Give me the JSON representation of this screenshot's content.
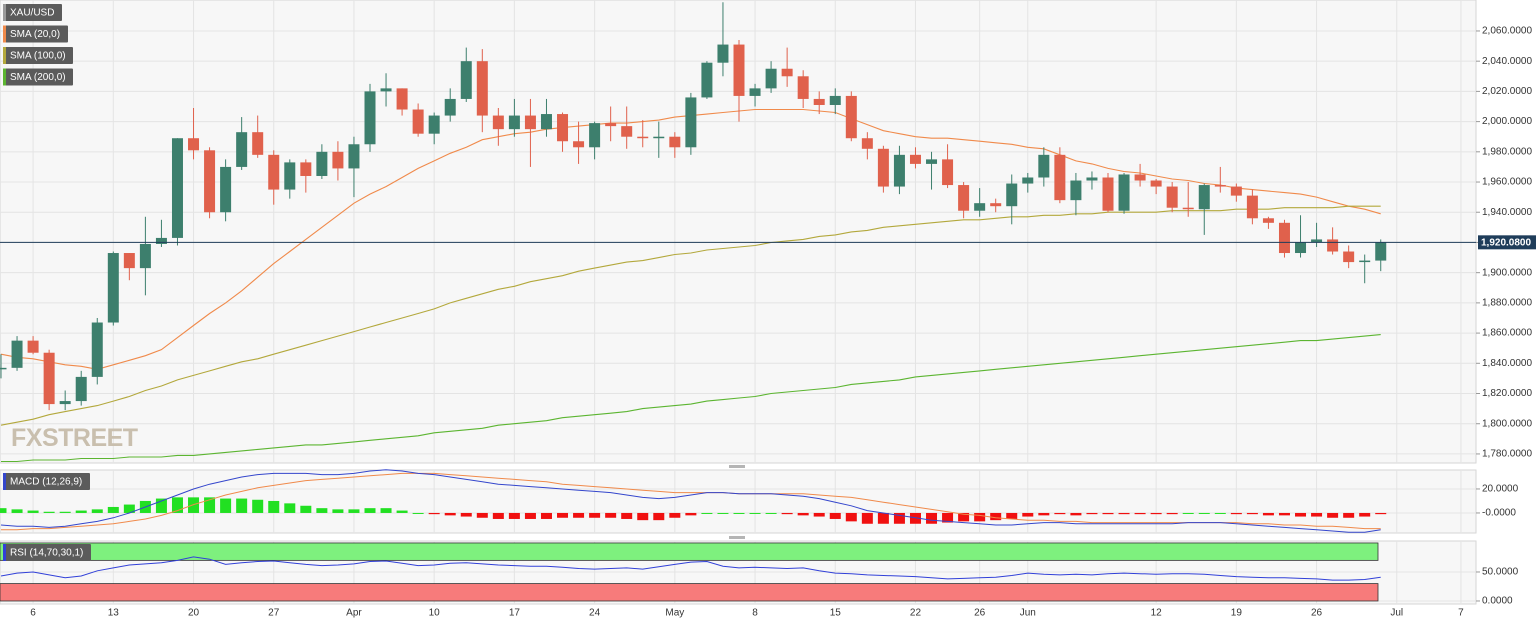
{
  "chart_data": {
    "type": "candlestick",
    "watermark": "FXSTREET",
    "categories": [
      null,
      null,
      "6",
      null,
      null,
      null,
      null,
      "13",
      null,
      null,
      null,
      null,
      "20",
      null,
      null,
      null,
      null,
      "27",
      null,
      null,
      null,
      null,
      "Apr",
      null,
      null,
      null,
      null,
      "10",
      null,
      null,
      null,
      null,
      "17",
      null,
      null,
      null,
      null,
      "24",
      null,
      null,
      null,
      null,
      "May",
      null,
      null,
      null,
      null,
      "8",
      null,
      null,
      null,
      null,
      "15",
      null,
      null,
      null,
      null,
      "22",
      null,
      null,
      null,
      "26",
      null,
      null,
      "Jun",
      null,
      null,
      null,
      null,
      null,
      null,
      null,
      "12",
      null,
      null,
      null,
      null,
      "19",
      null,
      null,
      null,
      null,
      "26",
      null,
      null,
      null,
      null,
      "Jul",
      null,
      null,
      null,
      "7"
    ],
    "ylim": [
      1774,
      2080.5
    ],
    "yticks": [
      {
        "value": 1780,
        "label": "1,780.0000"
      },
      {
        "value": 1800,
        "label": "1,800.0000"
      },
      {
        "value": 1820,
        "label": "1,820.0000"
      },
      {
        "value": 1840,
        "label": "1,840.0000"
      },
      {
        "value": 1860,
        "label": "1,860.0000"
      },
      {
        "value": 1880,
        "label": "1,880.0000"
      },
      {
        "value": 1900,
        "label": "1,900.0000"
      },
      {
        "value": 1920,
        "label": "1,920.0000"
      },
      {
        "value": 1940,
        "label": "1,940.0000"
      },
      {
        "value": 1960,
        "label": "1,960.0000"
      },
      {
        "value": 1980,
        "label": "1,980.0000"
      },
      {
        "value": 2000,
        "label": "2,000.0000"
      },
      {
        "value": 2020,
        "label": "2,020.0000"
      },
      {
        "value": 2040,
        "label": "2,040.0000"
      },
      {
        "value": 2060,
        "label": "2,060.0000"
      }
    ],
    "last_price": {
      "value": 1920.08,
      "label": "1,920.0800",
      "color": "#1f3d5a"
    },
    "series": [
      {
        "name": "XAU/USD",
        "up_color": "#3d7f6d",
        "down_color": "#e0614c",
        "open": [
          1836,
          1837,
          1855,
          1847,
          1813,
          1815,
          1831,
          1867,
          1913,
          1903,
          1919,
          1923,
          1989,
          1981,
          1940,
          1970,
          1993,
          1978,
          1955,
          1973,
          1964,
          1980,
          1969,
          1985,
          2020,
          2022,
          2008,
          1992,
          2004,
          2015,
          2040,
          2004,
          1995,
          2004,
          1995,
          2005,
          1987,
          1983,
          1999,
          1997,
          1990,
          1989,
          1990,
          1983,
          2016,
          2039,
          2051,
          2017,
          2022,
          2035,
          2030,
          2015,
          2011,
          2017,
          1989,
          1982,
          1957,
          1978,
          1972,
          1975,
          1958,
          1941,
          1946,
          1944,
          1959,
          1963,
          1978,
          1948,
          1961,
          1963,
          1941,
          1965,
          1961,
          1957,
          1943,
          1942,
          1958,
          1957,
          1951,
          1936,
          1933,
          1913,
          1920,
          1922,
          1914,
          1907,
          1908,
          null,
          null,
          null,
          null,
          null
        ],
        "high": [
          1846,
          1858,
          1858,
          1849,
          1822,
          1835,
          1870,
          1914,
          1913,
          1937,
          1935,
          1989,
          2009,
          1983,
          1975,
          2003,
          2004,
          1981,
          1975,
          1975,
          1985,
          1987,
          1990,
          2025,
          2032,
          2022,
          2012,
          2006,
          2022,
          2049,
          2048,
          2009,
          2015,
          2015,
          2015,
          2006,
          2000,
          2000,
          2010,
          2010,
          2001,
          2000,
          1993,
          2019,
          2040,
          2079,
          2054,
          2025,
          2040,
          2049,
          2034,
          2020,
          2022,
          2020,
          1993,
          1984,
          1984,
          1983,
          1980,
          1985,
          1960,
          1956,
          1949,
          1965,
          1966,
          1983,
          1983,
          1966,
          1967,
          1966,
          1966,
          1972,
          1962,
          1960,
          1960,
          1959,
          1970,
          1959,
          1955,
          1937,
          1935,
          1938,
          1933,
          1930,
          1918,
          1912,
          1922,
          null,
          null,
          null,
          null,
          null
        ],
        "low": [
          1830,
          1835,
          1846,
          1809,
          1809,
          1812,
          1826,
          1865,
          1895,
          1885,
          1917,
          1918,
          1975,
          1936,
          1934,
          1968,
          1976,
          1945,
          1949,
          1953,
          1962,
          1961,
          1950,
          1980,
          2010,
          2004,
          1990,
          1985,
          2000,
          2013,
          1993,
          1984,
          1990,
          1970,
          1990,
          1980,
          1972,
          1975,
          1987,
          1982,
          1983,
          1976,
          1976,
          1978,
          2015,
          2030,
          2000,
          2010,
          2019,
          2023,
          2009,
          2005,
          2005,
          1987,
          1975,
          1953,
          1952,
          1969,
          1955,
          1956,
          1936,
          1937,
          1940,
          1932,
          1953,
          1957,
          1946,
          1938,
          1955,
          1940,
          1939,
          1957,
          1952,
          1940,
          1937,
          1925,
          1953,
          1947,
          1932,
          1929,
          1910,
          1910,
          1917,
          1912,
          1903,
          1893,
          1901,
          null,
          null,
          null,
          null,
          null
        ],
        "close": [
          1837,
          1855,
          1847,
          1813,
          1815,
          1831,
          1867,
          1913,
          1903,
          1919,
          1923,
          1989,
          1981,
          1940,
          1970,
          1993,
          1978,
          1955,
          1973,
          1964,
          1980,
          1969,
          1985,
          2020,
          2022,
          2008,
          1992,
          2004,
          2015,
          2040,
          2004,
          1995,
          2004,
          1995,
          2005,
          1987,
          1983,
          1999,
          1997,
          1990,
          1989,
          1990,
          1983,
          2016,
          2039,
          2051,
          2017,
          2022,
          2035,
          2030,
          2015,
          2011,
          2017,
          1989,
          1982,
          1957,
          1978,
          1972,
          1975,
          1958,
          1941,
          1946,
          1944,
          1959,
          1963,
          1978,
          1948,
          1961,
          1963,
          1941,
          1965,
          1961,
          1957,
          1943,
          1942,
          1958,
          1957,
          1951,
          1936,
          1933,
          1913,
          1920,
          1922,
          1914,
          1907,
          1908,
          1920.08,
          null,
          null,
          null,
          null,
          null
        ]
      },
      {
        "name": "SMA (20,0)",
        "color": "#f08a4b",
        "values": [
          1846,
          1844,
          1843,
          1841,
          1839,
          1838,
          1836,
          1839,
          1842,
          1845,
          1849,
          1857,
          1865,
          1873,
          1880,
          1888,
          1897,
          1906,
          1914,
          1922,
          1930,
          1938,
          1946,
          1952,
          1957,
          1963,
          1969,
          1974,
          1979,
          1983,
          1988,
          1990,
          1992,
          1993,
          1995,
          1996,
          1997,
          1998,
          1999,
          1999,
          2000,
          2001,
          2003,
          2004,
          2005,
          2006,
          2007,
          2008,
          2008,
          2008,
          2008,
          2007,
          2006,
          2002,
          1998,
          1994,
          1992,
          1990,
          1989,
          1989,
          1988,
          1987,
          1986,
          1985,
          1983,
          1982,
          1978,
          1974,
          1972,
          1969,
          1967,
          1966,
          1964,
          1962,
          1961,
          1959,
          1958,
          1956,
          1955,
          1954,
          1953,
          1952,
          1950,
          1947,
          1944,
          1942,
          1939,
          null,
          null,
          null,
          null,
          null
        ]
      },
      {
        "name": "SMA (100,0)",
        "color": "#b3a83c",
        "values": [
          1799,
          1801,
          1803,
          1806,
          1808,
          1810,
          1812,
          1815,
          1818,
          1822,
          1825,
          1829,
          1832,
          1835,
          1838,
          1841,
          1843,
          1846,
          1849,
          1852,
          1855,
          1858,
          1861,
          1864,
          1867,
          1870,
          1873,
          1876,
          1880,
          1883,
          1886,
          1889,
          1891,
          1894,
          1896,
          1898,
          1901,
          1903,
          1905,
          1907,
          1908,
          1910,
          1912,
          1913,
          1915,
          1916,
          1917,
          1918,
          1920,
          1921,
          1922,
          1924,
          1925,
          1927,
          1928,
          1930,
          1931,
          1932,
          1933,
          1934,
          1935,
          1935,
          1936,
          1937,
          1937,
          1938,
          1938,
          1939,
          1939,
          1940,
          1940,
          1940,
          1940,
          1941,
          1941,
          1941,
          1941,
          1942,
          1942,
          1942,
          1943,
          1943,
          1943,
          1943,
          1944,
          1944,
          1944,
          null,
          null,
          null,
          null,
          null
        ]
      },
      {
        "name": "SMA (200,0)",
        "color": "#5cb531",
        "values": [
          1775,
          1775,
          1776,
          1776,
          1776,
          1777,
          1777,
          1777,
          1778,
          1778,
          1778,
          1779,
          1779,
          1780,
          1781,
          1782,
          1783,
          1784,
          1785,
          1786,
          1786,
          1787,
          1788,
          1789,
          1790,
          1791,
          1792,
          1794,
          1795,
          1796,
          1797,
          1799,
          1800,
          1801,
          1802,
          1804,
          1805,
          1806,
          1807,
          1808,
          1810,
          1811,
          1812,
          1813,
          1815,
          1816,
          1817,
          1818,
          1820,
          1821,
          1822,
          1823,
          1824,
          1826,
          1827,
          1828,
          1829,
          1831,
          1832,
          1833,
          1834,
          1835,
          1836,
          1837,
          1838,
          1839,
          1840,
          1841,
          1842,
          1843,
          1844,
          1845,
          1846,
          1847,
          1848,
          1849,
          1850,
          1851,
          1852,
          1853,
          1854,
          1855,
          1855,
          1856,
          1857,
          1858,
          1859,
          null,
          null,
          null,
          null,
          null
        ]
      }
    ],
    "macd": {
      "name": "MACD (12,26,9)",
      "ylim": [
        -16.7,
        35.8
      ],
      "yticks": [
        {
          "value": 20,
          "label": "20.0000"
        },
        {
          "value": 0,
          "label": "-0.0000"
        }
      ],
      "macd_line": {
        "color": "#3446cc",
        "values": [
          -10,
          -11,
          -11,
          -12,
          -11,
          -9,
          -7,
          -4,
          0,
          5,
          10,
          15,
          20,
          24,
          27,
          30,
          32,
          33,
          33,
          33,
          32,
          32,
          33,
          35,
          36,
          35,
          33,
          32,
          30,
          28,
          26,
          24,
          23,
          22,
          21,
          20,
          19,
          18,
          17,
          15,
          13,
          12,
          13,
          15,
          17,
          17,
          16,
          16,
          16,
          15,
          14,
          12,
          9,
          6,
          2,
          0,
          -2,
          -4,
          -6,
          -7,
          -8,
          -9,
          -10,
          -10,
          -9,
          -8,
          -8,
          -9,
          -9,
          -9,
          -9,
          -9,
          -9,
          -9,
          -8,
          -8,
          -8,
          -9,
          -10,
          -11,
          -12,
          -13,
          -14,
          -15,
          -16,
          -16,
          -14,
          null,
          null,
          null,
          null,
          null
        ]
      },
      "signal_line": {
        "color": "#f08a4b",
        "values": [
          -14,
          -14,
          -13,
          -13,
          -12,
          -11,
          -10,
          -9,
          -7,
          -5,
          -2,
          2,
          7,
          11,
          15,
          18,
          21,
          23,
          25,
          27,
          28,
          29,
          30,
          31,
          32,
          33,
          33,
          33,
          32,
          31,
          30,
          29,
          28,
          27,
          26,
          24,
          23,
          22,
          21,
          20,
          19,
          18,
          17,
          17,
          17,
          17,
          16,
          16,
          16,
          16,
          16,
          15,
          14,
          13,
          11,
          9,
          7,
          5,
          3,
          1,
          -1,
          -2,
          -4,
          -5,
          -6,
          -6,
          -7,
          -7,
          -8,
          -8,
          -8,
          -8,
          -8,
          -8,
          -8,
          -8,
          -8,
          -8,
          -9,
          -9,
          -10,
          -10,
          -11,
          -11,
          -12,
          -13,
          -13,
          null,
          null,
          null,
          null,
          null
        ]
      },
      "histogram": {
        "up_color": "#22e022",
        "down_color": "#f01010",
        "values": [
          4,
          3,
          2,
          1,
          1,
          2,
          3,
          5,
          7,
          10,
          12,
          13,
          13,
          13,
          12,
          12,
          11,
          10,
          8,
          6,
          4,
          3,
          3,
          4,
          4,
          2,
          0,
          -1,
          -2,
          -3,
          -4,
          -5,
          -5,
          -5,
          -5,
          -4,
          -4,
          -4,
          -4,
          -5,
          -6,
          -6,
          -4,
          -2,
          0,
          0,
          0,
          0,
          0,
          -1,
          -2,
          -3,
          -5,
          -7,
          -9,
          -9,
          -9,
          -9,
          -9,
          -8,
          -7,
          -7,
          -6,
          -5,
          -3,
          -2,
          -1,
          -2,
          -1,
          -1,
          -1,
          -1,
          -1,
          -1,
          0,
          0,
          0,
          -1,
          -1,
          -2,
          -2,
          -3,
          -3,
          -4,
          -4,
          -3,
          -1,
          null,
          null,
          null,
          null,
          null
        ]
      }
    },
    "rsi": {
      "name": "RSI (14,70,30,1)",
      "ylim": [
        -5.2,
        103.4
      ],
      "yticks": [
        {
          "value": 50,
          "label": "50.0000"
        },
        {
          "value": 0,
          "label": "0.0000"
        }
      ],
      "color": "#3140d8",
      "bands": [
        {
          "range": [
            70,
            100
          ],
          "color": "#7ef07e"
        },
        {
          "range": [
            0,
            30
          ],
          "color": "#f77b7b"
        }
      ],
      "values": [
        43,
        48,
        50,
        45,
        40,
        43,
        52,
        57,
        62,
        64,
        66,
        70,
        76,
        72,
        63,
        66,
        68,
        69,
        66,
        63,
        61,
        62,
        64,
        68,
        69,
        65,
        61,
        62,
        65,
        66,
        64,
        62,
        61,
        60,
        60,
        58,
        56,
        55,
        56,
        57,
        55,
        59,
        63,
        67,
        68,
        60,
        57,
        58,
        57,
        56,
        57,
        52,
        48,
        47,
        45,
        44,
        43,
        42,
        40,
        38,
        39,
        40,
        41,
        44,
        48,
        46,
        45,
        46,
        45,
        47,
        48,
        47,
        46,
        47,
        47,
        46,
        44,
        42,
        41,
        40,
        40,
        39,
        38,
        36,
        36,
        37,
        41,
        null,
        null,
        null,
        null,
        null
      ]
    }
  }
}
